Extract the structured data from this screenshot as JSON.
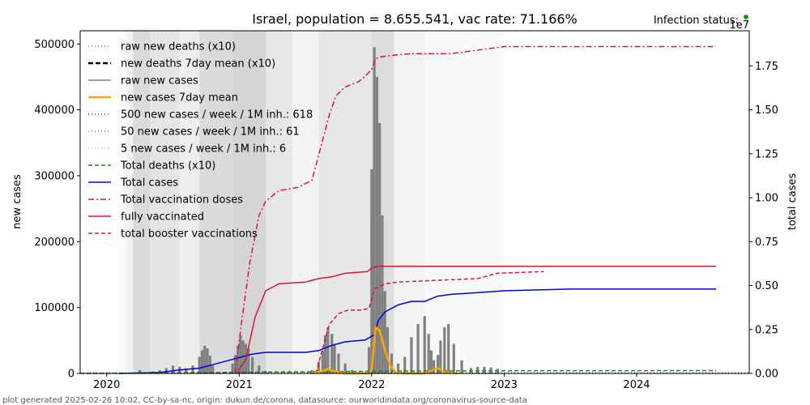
{
  "chart_data": {
    "type": "line",
    "title": "Israel, population = 8.655.541, vac rate: 71.166%",
    "status_label": "Infection status:",
    "status_color": "#1a9a1a",
    "ylabel_left": "new cases",
    "ylabel_right": "total cases",
    "right_axis_multiplier": "1e7",
    "footer": "plot generated 2025-02-26 10:02, CC-by-sa-nc, origin: dukun.de/corona, datasource: ourworldindata.org/coronavirus-source-data",
    "x_range": [
      2019.8,
      2024.85
    ],
    "x_ticks": [
      "2020",
      "2021",
      "2022",
      "2023",
      "2024"
    ],
    "left_ylim": [
      0,
      520000
    ],
    "left_ticks": [
      "0",
      "100000",
      "200000",
      "300000",
      "400000",
      "500000"
    ],
    "right_ylim": [
      0,
      1.95
    ],
    "right_ticks": [
      "0.00",
      "0.25",
      "0.50",
      "0.75",
      "1.00",
      "1.25",
      "1.50",
      "1.75"
    ],
    "grid": false,
    "legend_position": "upper-left",
    "background_shading": [
      {
        "from": 2020.08,
        "to": 2020.15,
        "shade": 0.04
      },
      {
        "from": 2020.15,
        "to": 2020.2,
        "shade": 0.12
      },
      {
        "from": 2020.2,
        "to": 2020.33,
        "shade": 0.3
      },
      {
        "from": 2020.33,
        "to": 2020.55,
        "shade": 0.22
      },
      {
        "from": 2020.55,
        "to": 2020.7,
        "shade": 0.14
      },
      {
        "from": 2020.7,
        "to": 2020.95,
        "shade": 0.3
      },
      {
        "from": 2020.95,
        "to": 2021.2,
        "shade": 0.35
      },
      {
        "from": 2021.2,
        "to": 2021.4,
        "shade": 0.2
      },
      {
        "from": 2021.4,
        "to": 2021.6,
        "shade": 0.1
      },
      {
        "from": 2021.6,
        "to": 2022.0,
        "shade": 0.2
      },
      {
        "from": 2022.0,
        "to": 2022.17,
        "shade": 0.28
      },
      {
        "from": 2022.17,
        "to": 2022.4,
        "shade": 0.1
      },
      {
        "from": 2022.4,
        "to": 2023.0,
        "shade": 0.05
      }
    ],
    "legend": [
      {
        "label": "raw new deaths (x10)",
        "color": "#808080",
        "dash": "1,3",
        "width": 1.5
      },
      {
        "label": "new deaths 7day mean (x10)",
        "color": "#000000",
        "dash": "6,3",
        "width": 2.5
      },
      {
        "label": "raw new cases",
        "color": "#808080",
        "dash": "",
        "width": 1.5
      },
      {
        "label": "new cases 7day mean",
        "color": "#ffa500",
        "dash": "",
        "width": 2.5
      },
      {
        "label": "500 new cases / week / 1M inh.: 618",
        "color": "#e00000",
        "dash": "1,3",
        "width": 1.5
      },
      {
        "label": "50 new cases / week / 1M inh.: 61",
        "color": "#d4700a",
        "dash": "1,3",
        "width": 1.5
      },
      {
        "label": "5 new cases / week / 1M inh.: 6",
        "color": "#e8c000",
        "dash": "1,3",
        "width": 1.5
      },
      {
        "label": "Total deaths (x10)",
        "color": "#1a8a1a",
        "dash": "5,3",
        "width": 1.5
      },
      {
        "label": "Total cases",
        "color": "#0000e0",
        "dash": "",
        "width": 1.5
      },
      {
        "label": "Total vaccination doses",
        "color": "#dc143c",
        "dash": "7,3,2,3",
        "width": 1.5
      },
      {
        "label": "fully vaccinated",
        "color": "#dc143c",
        "dash": "",
        "width": 1.5
      },
      {
        "label": "total booster vaccinations",
        "color": "#dc143c",
        "dash": "5,3",
        "width": 1.5
      }
    ],
    "series": [
      {
        "name": "Total cases",
        "axis": "right",
        "color": "#0000e0",
        "dash": "",
        "width": 1.5,
        "x": [
          2020.1,
          2020.4,
          2020.55,
          2020.7,
          2020.8,
          2020.9,
          2021.0,
          2021.1,
          2021.2,
          2021.5,
          2021.6,
          2021.7,
          2021.8,
          2021.95,
          2022.02,
          2022.05,
          2022.1,
          2022.15,
          2022.2,
          2022.3,
          2022.4,
          2022.5,
          2022.6,
          2022.8,
          2023.0,
          2023.5,
          2024.0,
          2024.6
        ],
        "y": [
          0.0,
          0.005,
          0.02,
          0.03,
          0.05,
          0.07,
          0.09,
          0.11,
          0.12,
          0.12,
          0.13,
          0.16,
          0.18,
          0.19,
          0.22,
          0.3,
          0.35,
          0.37,
          0.39,
          0.41,
          0.41,
          0.44,
          0.45,
          0.46,
          0.47,
          0.48,
          0.48,
          0.48
        ]
      },
      {
        "name": "Total vaccination doses",
        "axis": "right",
        "color": "#dc143c",
        "dash": "7,3,2,3",
        "width": 1.5,
        "x": [
          2020.97,
          2021.02,
          2021.08,
          2021.15,
          2021.2,
          2021.3,
          2021.45,
          2021.55,
          2021.62,
          2021.68,
          2021.73,
          2021.8,
          2021.9,
          2021.95,
          2022.0,
          2022.03,
          2022.06,
          2022.15,
          2022.3,
          2022.6,
          2022.8,
          2023.0,
          2023.5,
          2024.6
        ],
        "y": [
          0.0,
          0.3,
          0.63,
          0.9,
          0.98,
          1.04,
          1.06,
          1.1,
          1.3,
          1.47,
          1.58,
          1.63,
          1.66,
          1.69,
          1.73,
          1.79,
          1.8,
          1.81,
          1.82,
          1.82,
          1.84,
          1.86,
          1.86,
          1.86
        ]
      },
      {
        "name": "fully vaccinated",
        "axis": "right",
        "color": "#dc143c",
        "dash": "",
        "width": 1.5,
        "x": [
          2020.98,
          2021.05,
          2021.12,
          2021.2,
          2021.3,
          2021.5,
          2021.6,
          2021.7,
          2021.8,
          2021.97,
          2022.0,
          2022.05,
          2022.1,
          2022.5,
          2023.0,
          2024.0,
          2024.6
        ],
        "y": [
          0.0,
          0.08,
          0.32,
          0.47,
          0.51,
          0.52,
          0.54,
          0.55,
          0.57,
          0.58,
          0.6,
          0.61,
          0.61,
          0.61,
          0.61,
          0.61,
          0.61
        ]
      },
      {
        "name": "total booster vaccinations",
        "axis": "right",
        "color": "#dc143c",
        "dash": "5,3",
        "width": 1.5,
        "x": [
          2021.58,
          2021.63,
          2021.68,
          2021.75,
          2021.82,
          2021.92,
          2021.98,
          2022.02,
          2022.1,
          2022.2,
          2022.5,
          2022.8,
          2022.95,
          2023.3
        ],
        "y": [
          0.0,
          0.14,
          0.28,
          0.34,
          0.36,
          0.36,
          0.37,
          0.48,
          0.51,
          0.52,
          0.53,
          0.54,
          0.57,
          0.58
        ]
      },
      {
        "name": "Total deaths (x10)",
        "axis": "right",
        "color": "#1a8a1a",
        "dash": "5,3",
        "width": 1.5,
        "x": [
          2019.8,
          2020.3,
          2020.8,
          2021.2,
          2021.7,
          2022.2,
          2023.0,
          2024.6
        ],
        "y": [
          0.0,
          0.001,
          0.005,
          0.008,
          0.01,
          0.013,
          0.015,
          0.016
        ]
      },
      {
        "name": "new cases 7day mean",
        "axis": "left",
        "color": "#ffa500",
        "dash": "",
        "width": 2.5,
        "x": [
          2021.55,
          2021.62,
          2021.67,
          2021.72,
          2021.8,
          2021.98,
          2022.0,
          2022.03,
          2022.06,
          2022.1,
          2022.14,
          2022.18,
          2022.25,
          2022.4,
          2022.5,
          2022.55,
          2022.65
        ],
        "y": [
          0,
          3000,
          7000,
          3000,
          0,
          0,
          5000,
          70000,
          65000,
          35000,
          12000,
          2000,
          0,
          0,
          8000,
          2000,
          0
        ]
      },
      {
        "name": "5 new cases / week / 1M inh.: 6",
        "axis": "left",
        "color": "#e8c000",
        "dash": "1,3",
        "width": 1.5,
        "x": [
          2019.8,
          2024.85
        ],
        "y": [
          6,
          6
        ]
      },
      {
        "name": "50 new cases / week / 1M inh.: 61",
        "axis": "left",
        "color": "#d4700a",
        "dash": "1,3",
        "width": 1.5,
        "x": [
          2019.8,
          2024.85
        ],
        "y": [
          61,
          61
        ]
      },
      {
        "name": "500 new cases / week / 1M inh.: 618",
        "axis": "left",
        "color": "#e00000",
        "dash": "1,3",
        "width": 1.5,
        "x": [
          2019.8,
          2024.85
        ],
        "y": [
          618,
          618
        ]
      }
    ],
    "raw_new_cases": {
      "color": "#808080",
      "x": [
        2020.25,
        2020.3,
        2020.35,
        2020.4,
        2020.45,
        2020.5,
        2020.55,
        2020.6,
        2020.65,
        2020.7,
        2020.72,
        2020.74,
        2020.76,
        2020.78,
        2020.8,
        2020.95,
        2020.97,
        2020.99,
        2021.01,
        2021.03,
        2021.05,
        2021.07,
        2021.1,
        2021.15,
        2021.2,
        2021.55,
        2021.6,
        2021.63,
        2021.65,
        2021.67,
        2021.7,
        2021.72,
        2021.75,
        2021.8,
        2021.85,
        2021.98,
        2022.0,
        2022.02,
        2022.04,
        2022.06,
        2022.08,
        2022.1,
        2022.12,
        2022.15,
        2022.2,
        2022.25,
        2022.3,
        2022.35,
        2022.4,
        2022.43,
        2022.45,
        2022.47,
        2022.5,
        2022.52,
        2022.55,
        2022.58,
        2022.62,
        2022.68,
        2022.75,
        2022.8,
        2022.85,
        2022.9,
        2022.95
      ],
      "y": [
        5000,
        2000,
        3000,
        5000,
        8000,
        12000,
        10000,
        8000,
        12000,
        25000,
        35000,
        42000,
        38000,
        27000,
        12000,
        15000,
        28000,
        42000,
        58000,
        50000,
        45000,
        38000,
        25000,
        12000,
        4000,
        5000,
        18000,
        35000,
        58000,
        70000,
        60000,
        45000,
        30000,
        15000,
        5000,
        40000,
        310000,
        495000,
        450000,
        380000,
        240000,
        125000,
        70000,
        30000,
        15000,
        25000,
        55000,
        75000,
        87000,
        60000,
        35000,
        20000,
        28000,
        50000,
        70000,
        75000,
        45000,
        20000,
        8000,
        10000,
        10000,
        9000,
        7000
      ]
    }
  }
}
